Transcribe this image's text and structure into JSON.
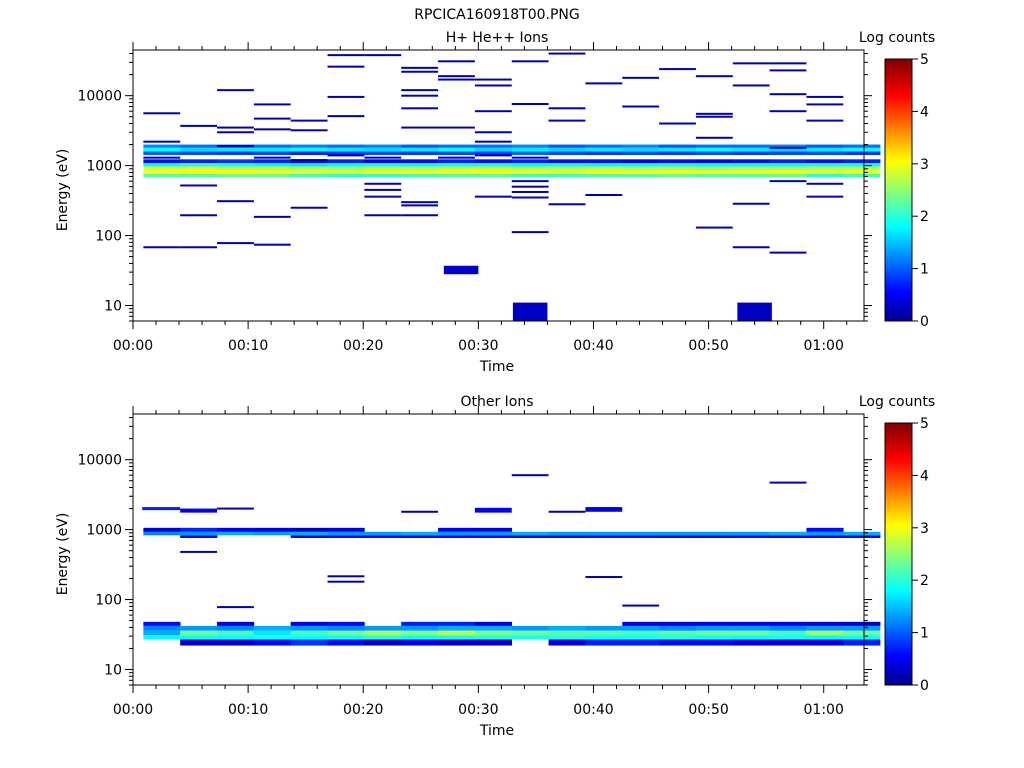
{
  "figure": {
    "title": "RPCICA160918T00.PNG"
  },
  "chart_data": [
    {
      "type": "heatmap",
      "title": "H+ He++ Ions",
      "xlabel": "Time",
      "ylabel": "Energy (eV)",
      "xlim_minutes": [
        0,
        63.5
      ],
      "ylim": [
        6,
        45000
      ],
      "yscale": "log",
      "xticks": [
        "00:00",
        "00:10",
        "00:20",
        "00:30",
        "00:40",
        "00:50",
        "01:00"
      ],
      "yticks": [
        "10",
        "100",
        "1000",
        "10000"
      ],
      "colorbar": {
        "label": "Log counts",
        "ticks": [
          "0",
          "1",
          "2",
          "3",
          "4",
          "5"
        ],
        "range": [
          0,
          5
        ],
        "colormap": "jet"
      },
      "column_minutes": [
        0.9,
        4.1,
        7.3,
        10.5,
        13.7,
        16.9,
        20.1,
        23.3,
        26.5,
        29.7,
        32.9,
        36.1,
        39.3,
        42.5,
        45.7,
        48.9,
        52.1,
        55.3,
        58.5,
        61.7
      ],
      "bands": [
        {
          "e_min": 680,
          "e_max": 760,
          "values": [
            2.2,
            2.2,
            2.3,
            2.3,
            2.1,
            2.0,
            2.0,
            2.1,
            2.2,
            2.2,
            2.1,
            2.1,
            2.2,
            2.2,
            2.3,
            2.2,
            2.2,
            2.3,
            2.0,
            2.1
          ]
        },
        {
          "e_min": 760,
          "e_max": 860,
          "values": [
            3.0,
            3.1,
            3.1,
            3.0,
            2.9,
            2.9,
            3.0,
            3.0,
            3.0,
            3.1,
            3.0,
            2.9,
            3.0,
            3.0,
            3.0,
            3.0,
            3.0,
            3.0,
            2.9,
            3.0
          ]
        },
        {
          "e_min": 860,
          "e_max": 970,
          "values": [
            2.9,
            2.9,
            2.8,
            2.8,
            2.7,
            2.6,
            2.7,
            2.7,
            2.8,
            2.8,
            2.7,
            2.7,
            2.8,
            2.7,
            2.7,
            2.6,
            2.7,
            2.7,
            2.7,
            2.7
          ]
        },
        {
          "e_min": 970,
          "e_max": 1090,
          "values": [
            1.8,
            2.0,
            1.9,
            1.8,
            1.7,
            1.8,
            1.9,
            1.8,
            1.9,
            1.9,
            1.8,
            1.9,
            1.8,
            1.8,
            1.9,
            1.8,
            1.8,
            1.8,
            1.9,
            1.9
          ]
        },
        {
          "e_min": 1090,
          "e_max": 1230,
          "values": [
            0.6,
            0.7,
            0.8,
            0.7,
            0.6,
            0.7,
            0.5,
            0.6,
            0.7,
            0.6,
            0.7,
            0.6,
            0.6,
            0.5,
            0.6,
            0.5,
            0.6,
            0.7,
            0.6,
            0.7
          ]
        },
        {
          "e_min": 1420,
          "e_max": 1600,
          "values": [
            1.0,
            0.9,
            0.8,
            0.9,
            0.7,
            0.8,
            0.9,
            0.8,
            0.9,
            0.8,
            1.0,
            0.9,
            0.8,
            0.9,
            0.8,
            0.9,
            0.8,
            0.9,
            0.9,
            0.8
          ]
        },
        {
          "e_min": 1600,
          "e_max": 1800,
          "values": [
            1.8,
            1.6,
            1.7,
            1.7,
            1.8,
            1.7,
            1.6,
            1.7,
            1.8,
            1.6,
            1.7,
            1.6,
            1.7,
            1.6,
            1.7,
            1.8,
            1.7,
            1.6,
            1.7,
            1.8
          ]
        },
        {
          "e_min": 1800,
          "e_max": 2000,
          "values": [
            1.2,
            1.1,
            1.0,
            1.1,
            1.2,
            1.1,
            1.2,
            1.0,
            1.1,
            1.1,
            1.2,
            1.0,
            1.1,
            1.2,
            1.0,
            1.1,
            1.1,
            1.2,
            1.0,
            1.1
          ]
        }
      ],
      "blocks": [
        {
          "t0": 27.0,
          "t1": 30.0,
          "e_min": 28,
          "e_max": 37,
          "value": 0.3
        },
        {
          "t0": 33.0,
          "t1": 36.0,
          "e_min": 6,
          "e_max": 11,
          "value": 0.25
        },
        {
          "t0": 52.5,
          "t1": 55.5,
          "e_min": 6,
          "e_max": 11,
          "value": 0.25
        }
      ],
      "streaks": [
        {
          "t": 0.9,
          "e": [
            5600,
            2200,
            1300,
            68
          ]
        },
        {
          "t": 4.1,
          "e": [
            3700,
            520,
            195,
            68
          ]
        },
        {
          "t": 7.3,
          "e": [
            12000,
            3500,
            3000,
            1900,
            310,
            78
          ]
        },
        {
          "t": 10.5,
          "e": [
            7500,
            4700,
            3300,
            1300,
            185,
            74
          ]
        },
        {
          "t": 13.7,
          "e": [
            4400,
            3200,
            1200,
            250
          ]
        },
        {
          "t": 16.9,
          "e": [
            38000,
            26000,
            9600,
            5100,
            1400
          ]
        },
        {
          "t": 20.1,
          "e": [
            38000,
            1300,
            550,
            450,
            360,
            195
          ]
        },
        {
          "t": 23.3,
          "e": [
            25000,
            22000,
            12000,
            10000,
            6600,
            3500,
            300,
            270,
            195
          ]
        },
        {
          "t": 26.5,
          "e": [
            31000,
            19000,
            17000,
            3500,
            1300
          ]
        },
        {
          "t": 29.7,
          "e": [
            17000,
            14000,
            6000,
            3000,
            2200,
            1400,
            360
          ]
        },
        {
          "t": 32.9,
          "e": [
            31000,
            7600,
            1300,
            600,
            500,
            420,
            350,
            112
          ]
        },
        {
          "t": 36.1,
          "e": [
            40000,
            6600,
            4400,
            280
          ]
        },
        {
          "t": 39.3,
          "e": [
            15000,
            380
          ]
        },
        {
          "t": 42.5,
          "e": [
            18000,
            7000
          ]
        },
        {
          "t": 45.7,
          "e": [
            24000,
            4000
          ]
        },
        {
          "t": 48.9,
          "e": [
            19000,
            5500,
            5000,
            2500,
            130
          ]
        },
        {
          "t": 52.1,
          "e": [
            29000,
            14000,
            285,
            68
          ]
        },
        {
          "t": 55.3,
          "e": [
            29000,
            23000,
            10500,
            6000,
            1800,
            600,
            57
          ]
        },
        {
          "t": 58.5,
          "e": [
            9600,
            7500,
            4400,
            550,
            360
          ]
        }
      ]
    },
    {
      "type": "heatmap",
      "title": "Other Ions",
      "xlabel": "Time",
      "ylabel": "Energy (eV)",
      "xlim_minutes": [
        0,
        63.5
      ],
      "ylim": [
        6,
        45000
      ],
      "yscale": "log",
      "xticks": [
        "00:00",
        "00:10",
        "00:20",
        "00:30",
        "00:40",
        "00:50",
        "01:00"
      ],
      "yticks": [
        "10",
        "100",
        "1000",
        "10000"
      ],
      "colorbar": {
        "label": "Log counts",
        "ticks": [
          "0",
          "1",
          "2",
          "3",
          "4",
          "5"
        ],
        "range": [
          0,
          5
        ],
        "colormap": "jet"
      },
      "column_minutes": [
        0.9,
        4.1,
        7.3,
        10.5,
        13.7,
        16.9,
        20.1,
        23.3,
        26.5,
        29.7,
        32.9,
        36.1,
        39.3,
        42.5,
        45.7,
        48.9,
        52.1,
        55.3,
        58.5,
        61.7
      ],
      "bands": [
        {
          "e_min": 22,
          "e_max": 27,
          "values": [
            null,
            0.3,
            0.3,
            0.6,
            0.8,
            0.6,
            0.3,
            0.5,
            0.3,
            0.3,
            null,
            0.4,
            0.7,
            0.7,
            0.6,
            0.6,
            0.4,
            0.4,
            0.4,
            0.7
          ]
        },
        {
          "e_min": 27,
          "e_max": 31,
          "values": [
            1.8,
            1.9,
            1.8,
            1.9,
            1.8,
            1.9,
            2.0,
            1.9,
            1.9,
            2.0,
            1.9,
            2.0,
            1.9,
            1.9,
            2.0,
            1.9,
            1.8,
            1.9,
            1.8,
            1.9
          ]
        },
        {
          "e_min": 31,
          "e_max": 36,
          "values": [
            1.4,
            2.3,
            2.1,
            1.7,
            2.1,
            2.3,
            2.6,
            2.4,
            2.7,
            2.4,
            2.3,
            2.2,
            2.2,
            2.1,
            2.2,
            2.3,
            2.3,
            2.1,
            2.6,
            2.3
          ]
        },
        {
          "e_min": 36,
          "e_max": 42,
          "values": [
            1.2,
            1.3,
            1.2,
            1.4,
            1.3,
            1.2,
            1.3,
            1.3,
            1.4,
            1.4,
            1.3,
            1.4,
            1.3,
            1.3,
            1.2,
            1.3,
            1.3,
            1.2,
            1.3,
            1.3
          ]
        },
        {
          "e_min": 42,
          "e_max": 48,
          "values": [
            0.6,
            null,
            0.4,
            null,
            0.5,
            0.6,
            null,
            0.7,
            0.7,
            0.4,
            null,
            null,
            null,
            0.4,
            0.4,
            0.5,
            0.5,
            0.5,
            0.4,
            0.3
          ]
        },
        {
          "e_min": 760,
          "e_max": 830,
          "values": [
            null,
            0.3,
            null,
            null,
            0.2,
            0.5,
            0.5,
            0.4,
            0.5,
            0.5,
            0.4,
            0.4,
            0.5,
            0.5,
            0.4,
            0.4,
            0.5,
            0.4,
            0.4,
            0.4
          ]
        },
        {
          "e_min": 830,
          "e_max": 930,
          "values": [
            1.2,
            1.3,
            1.4,
            1.3,
            1.4,
            1.3,
            1.3,
            1.4,
            1.3,
            1.3,
            1.4,
            1.3,
            1.3,
            1.3,
            1.3,
            1.3,
            1.3,
            1.4,
            1.3,
            1.4
          ]
        },
        {
          "e_min": 930,
          "e_max": 1060,
          "values": [
            0.4,
            0.7,
            0.5,
            0.4,
            0.3,
            0.4,
            null,
            null,
            0.5,
            0.4,
            null,
            null,
            null,
            null,
            null,
            null,
            null,
            null,
            0.6,
            null
          ]
        }
      ],
      "blocks": [
        {
          "t0": 0.8,
          "t1": 4.1,
          "e_min": 1900,
          "e_max": 2100,
          "value": 0.7
        },
        {
          "t0": 4.1,
          "t1": 7.3,
          "e_min": 1750,
          "e_max": 2000,
          "value": 0.5
        },
        {
          "t0": 29.7,
          "t1": 32.9,
          "e_min": 1750,
          "e_max": 2050,
          "value": 0.5
        },
        {
          "t0": 39.3,
          "t1": 42.5,
          "e_min": 1800,
          "e_max": 2100,
          "value": 0.4
        }
      ],
      "streaks": [
        {
          "t": 7.3,
          "e": [
            2000,
            78
          ]
        },
        {
          "t": 4.1,
          "e": [
            480
          ]
        },
        {
          "t": 16.9,
          "e": [
            215,
            180
          ]
        },
        {
          "t": 23.3,
          "e": [
            1800
          ]
        },
        {
          "t": 32.9,
          "e": [
            6000
          ]
        },
        {
          "t": 36.1,
          "e": [
            1800
          ]
        },
        {
          "t": 39.3,
          "e": [
            210
          ]
        },
        {
          "t": 42.5,
          "e": [
            82
          ]
        },
        {
          "t": 55.3,
          "e": [
            4700
          ]
        }
      ]
    }
  ]
}
